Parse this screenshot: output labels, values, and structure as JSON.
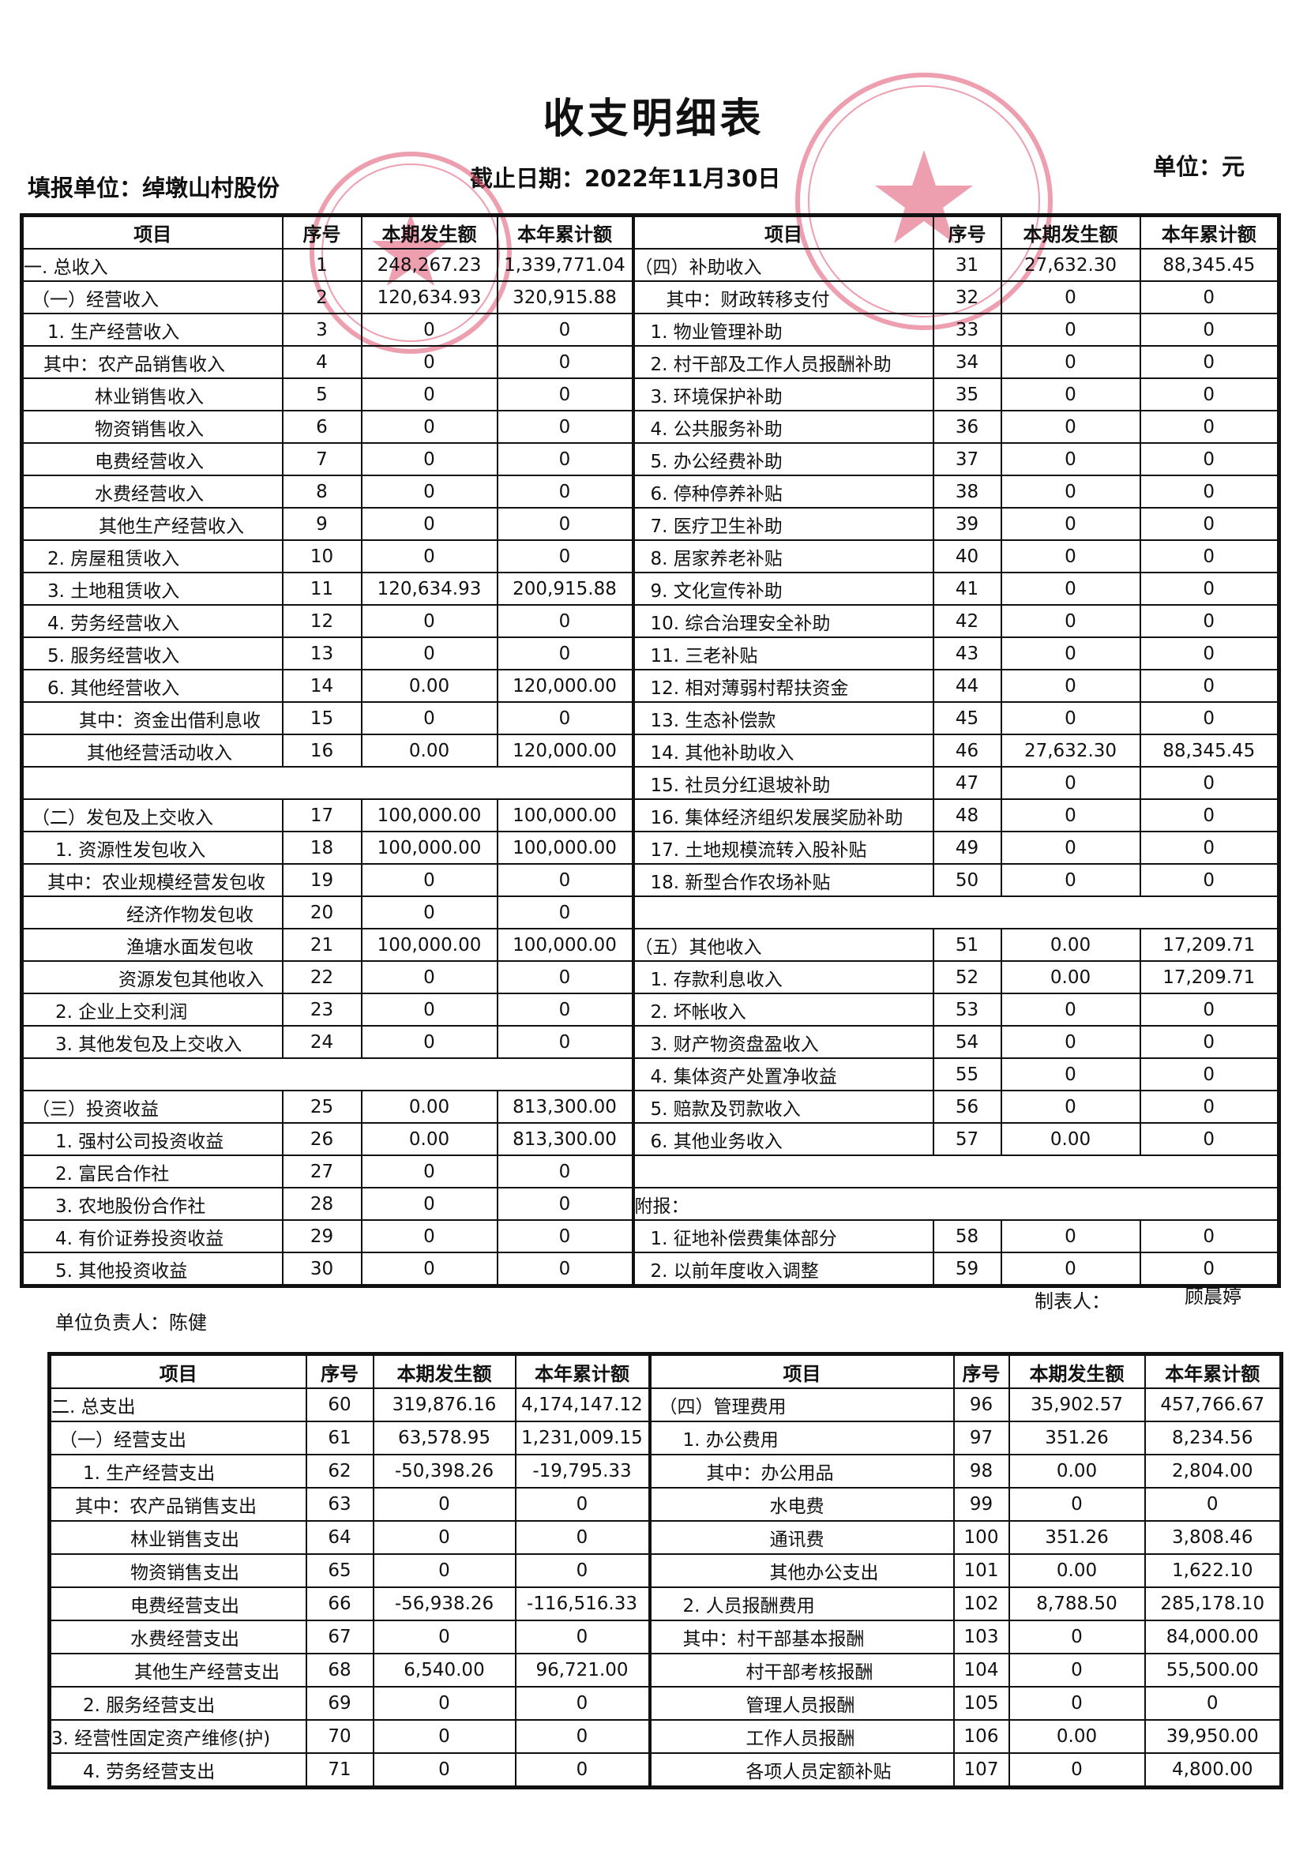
{
  "title": "收支明细表",
  "header": {
    "unit_label": "填报单位：绰墩山村股份",
    "date_label": "截止日期：2022年11月30日",
    "currency_label": "单位：元"
  },
  "columns": [
    "项目",
    "序号",
    "本期发生额",
    "本年累计额"
  ],
  "income_table": {
    "rows": [
      {
        "l": [
          "一. 总收入",
          "1",
          "248,267.23",
          "1,339,771.04"
        ],
        "r": [
          "（四）补助收入",
          "31",
          "27,632.30",
          "88,345.45"
        ]
      },
      {
        "l": [
          "（一）经营收入",
          "2",
          "120,634.93",
          "320,915.88"
        ],
        "r": [
          "其中：财政转移支付",
          "32",
          "0",
          "0"
        ]
      },
      {
        "l": [
          "1. 生产经营收入",
          "3",
          "0",
          "0"
        ],
        "r": [
          "1. 物业管理补助",
          "33",
          "0",
          "0"
        ]
      },
      {
        "l": [
          "其中：农产品销售收入",
          "4",
          "0",
          "0"
        ],
        "r": [
          "2. 村干部及工作人员报酬补助",
          "34",
          "0",
          "0"
        ]
      },
      {
        "l": [
          "林业销售收入",
          "5",
          "0",
          "0"
        ],
        "r": [
          "3. 环境保护补助",
          "35",
          "0",
          "0"
        ]
      },
      {
        "l": [
          "物资销售收入",
          "6",
          "0",
          "0"
        ],
        "r": [
          "4. 公共服务补助",
          "36",
          "0",
          "0"
        ]
      },
      {
        "l": [
          "电费经营收入",
          "7",
          "0",
          "0"
        ],
        "r": [
          "5. 办公经费补助",
          "37",
          "0",
          "0"
        ]
      },
      {
        "l": [
          "水费经营收入",
          "8",
          "0",
          "0"
        ],
        "r": [
          "6. 停种停养补贴",
          "38",
          "0",
          "0"
        ]
      },
      {
        "l": [
          "其他生产经营收入",
          "9",
          "0",
          "0"
        ],
        "r": [
          "7. 医疗卫生补助",
          "39",
          "0",
          "0"
        ]
      },
      {
        "l": [
          "2. 房屋租赁收入",
          "10",
          "0",
          "0"
        ],
        "r": [
          "8. 居家养老补贴",
          "40",
          "0",
          "0"
        ]
      },
      {
        "l": [
          "3. 土地租赁收入",
          "11",
          "120,634.93",
          "200,915.88"
        ],
        "r": [
          "9. 文化宣传补助",
          "41",
          "0",
          "0"
        ]
      },
      {
        "l": [
          "4. 劳务经营收入",
          "12",
          "0",
          "0"
        ],
        "r": [
          "10. 综合治理安全补助",
          "42",
          "0",
          "0"
        ]
      },
      {
        "l": [
          "5. 服务经营收入",
          "13",
          "0",
          "0"
        ],
        "r": [
          "11. 三老补贴",
          "43",
          "0",
          "0"
        ]
      },
      {
        "l": [
          "6. 其他经营收入",
          "14",
          "0.00",
          "120,000.00"
        ],
        "r": [
          "12. 相对薄弱村帮扶资金",
          "44",
          "0",
          "0"
        ]
      },
      {
        "l": [
          "其中：资金出借利息收",
          "15",
          "0",
          "0"
        ],
        "r": [
          "13. 生态补偿款",
          "45",
          "0",
          "0"
        ]
      },
      {
        "l": [
          "其他经营活动收入",
          "16",
          "0.00",
          "120,000.00"
        ],
        "r": [
          "14. 其他补助收入",
          "46",
          "27,632.30",
          "88,345.45"
        ]
      },
      {
        "l": [
          "",
          "",
          "",
          ""
        ],
        "r": [
          "15. 社员分红退坡补助",
          "47",
          "0",
          "0"
        ]
      },
      {
        "l": [
          "（二）发包及上交收入",
          "17",
          "100,000.00",
          "100,000.00"
        ],
        "r": [
          "16. 集体经济组织发展奖励补助",
          "48",
          "0",
          "0"
        ]
      },
      {
        "l": [
          "1. 资源性发包收入",
          "18",
          "100,000.00",
          "100,000.00"
        ],
        "r": [
          "17. 土地规模流转入股补贴",
          "49",
          "0",
          "0"
        ]
      },
      {
        "l": [
          "其中：农业规模经营发包收",
          "19",
          "0",
          "0"
        ],
        "r": [
          "18. 新型合作农场补贴",
          "50",
          "0",
          "0"
        ]
      },
      {
        "l": [
          "经济作物发包收",
          "20",
          "0",
          "0"
        ],
        "r": [
          "",
          "",
          "",
          ""
        ]
      },
      {
        "l": [
          "渔塘水面发包收",
          "21",
          "100,000.00",
          "100,000.00"
        ],
        "r": [
          "（五）其他收入",
          "51",
          "0.00",
          "17,209.71"
        ]
      },
      {
        "l": [
          "资源发包其他收入",
          "22",
          "0",
          "0"
        ],
        "r": [
          "1. 存款利息收入",
          "52",
          "0.00",
          "17,209.71"
        ]
      },
      {
        "l": [
          "2. 企业上交利润",
          "23",
          "0",
          "0"
        ],
        "r": [
          "2. 坏帐收入",
          "53",
          "0",
          "0"
        ]
      },
      {
        "l": [
          "3. 其他发包及上交收入",
          "24",
          "0",
          "0"
        ],
        "r": [
          "3. 财产物资盘盈收入",
          "54",
          "0",
          "0"
        ]
      },
      {
        "l": [
          "",
          "",
          "",
          ""
        ],
        "r": [
          "4. 集体资产处置净收益",
          "55",
          "0",
          "0"
        ]
      },
      {
        "l": [
          "（三）投资收益",
          "25",
          "0.00",
          "813,300.00"
        ],
        "r": [
          "5. 赔款及罚款收入",
          "56",
          "0",
          "0"
        ]
      },
      {
        "l": [
          "1. 强村公司投资收益",
          "26",
          "0.00",
          "813,300.00"
        ],
        "r": [
          "6. 其他业务收入",
          "57",
          "0.00",
          "0"
        ]
      },
      {
        "l": [
          "2. 富民合作社",
          "27",
          "0",
          "0"
        ],
        "r": [
          "",
          "",
          "",
          ""
        ]
      },
      {
        "l": [
          "3. 农地股份合作社",
          "28",
          "0",
          "0"
        ],
        "r": [
          "附报：",
          "",
          "",
          ""
        ]
      },
      {
        "l": [
          "4. 有价证券投资收益",
          "29",
          "0",
          "0"
        ],
        "r": [
          "1. 征地补偿费集体部分",
          "58",
          "0",
          "0"
        ]
      },
      {
        "l": [
          "5. 其他投资收益",
          "30",
          "0",
          "0"
        ],
        "r": [
          "2. 以前年度收入调整",
          "59",
          "0",
          "0"
        ]
      }
    ]
  },
  "signatures": {
    "preparer_label": "制表人：",
    "preparer_name": "顾晨婷",
    "head_label": "单位负责人：陈健"
  },
  "expense_table": {
    "rows": [
      {
        "l": [
          "二. 总支出",
          "60",
          "319,876.16",
          "4,174,147.12"
        ],
        "r": [
          "（四）管理费用",
          "96",
          "35,902.57",
          "457,766.67"
        ]
      },
      {
        "l": [
          "（一）经营支出",
          "61",
          "63,578.95",
          "1,231,009.15"
        ],
        "r": [
          "1. 办公费用",
          "97",
          "351.26",
          "8,234.56"
        ]
      },
      {
        "l": [
          "1. 生产经营支出",
          "62",
          "-50,398.26",
          "-19,795.33"
        ],
        "r": [
          "其中：办公用品",
          "98",
          "0.00",
          "2,804.00"
        ]
      },
      {
        "l": [
          "其中：农产品销售支出",
          "63",
          "0",
          "0"
        ],
        "r": [
          "水电费",
          "99",
          "0",
          "0"
        ]
      },
      {
        "l": [
          "林业销售支出",
          "64",
          "0",
          "0"
        ],
        "r": [
          "通讯费",
          "100",
          "351.26",
          "3,808.46"
        ]
      },
      {
        "l": [
          "物资销售支出",
          "65",
          "0",
          "0"
        ],
        "r": [
          "其他办公支出",
          "101",
          "0.00",
          "1,622.10"
        ]
      },
      {
        "l": [
          "电费经营支出",
          "66",
          "-56,938.26",
          "-116,516.33"
        ],
        "r": [
          "2. 人员报酬费用",
          "102",
          "8,788.50",
          "285,178.10"
        ]
      },
      {
        "l": [
          "水费经营支出",
          "67",
          "0",
          "0"
        ],
        "r": [
          "其中：村干部基本报酬",
          "103",
          "0",
          "84,000.00"
        ]
      },
      {
        "l": [
          "其他生产经营支出",
          "68",
          "6,540.00",
          "96,721.00"
        ],
        "r": [
          "村干部考核报酬",
          "104",
          "0",
          "55,500.00"
        ]
      },
      {
        "l": [
          "2. 服务经营支出",
          "69",
          "0",
          "0"
        ],
        "r": [
          "管理人员报酬",
          "105",
          "0",
          "0"
        ]
      },
      {
        "l": [
          "3. 经营性固定资产维修(护)",
          "70",
          "0",
          "0"
        ],
        "r": [
          "工作人员报酬",
          "106",
          "0.00",
          "39,950.00"
        ]
      },
      {
        "l": [
          "4. 劳务经营支出",
          "71",
          "0",
          "0"
        ],
        "r": [
          "各项人员定额补贴",
          "107",
          "0",
          "4,800.00"
        ]
      }
    ]
  },
  "colors": {
    "ink": "#111111",
    "stamp": "#e0506e"
  }
}
